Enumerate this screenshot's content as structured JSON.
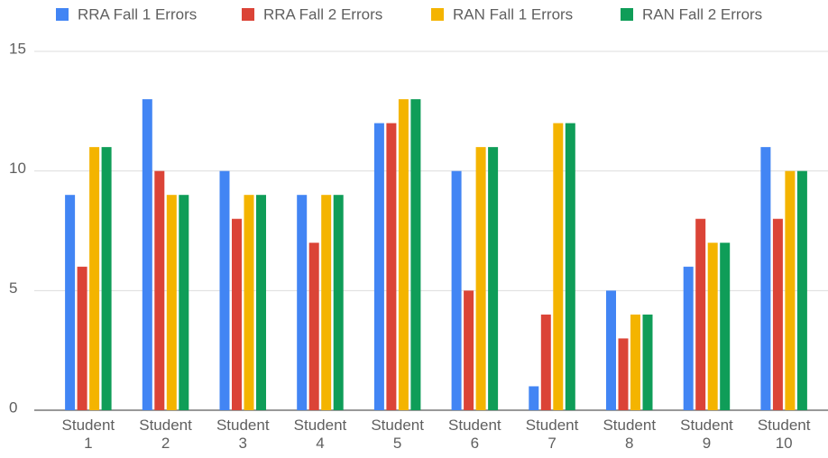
{
  "chart_data": {
    "type": "bar",
    "categories": [
      "Student 1",
      "Student 2",
      "Student 3",
      "Student 4",
      "Student 5",
      "Student 6",
      "Student 7",
      "Student 8",
      "Student 9",
      "Student 10"
    ],
    "series": [
      {
        "name": "RRA Fall 1 Errors",
        "color": "#4285f4",
        "values": [
          9,
          13,
          10,
          9,
          12,
          10,
          1,
          5,
          6,
          11
        ]
      },
      {
        "name": "RRA Fall 2 Errors",
        "color": "#db4437",
        "values": [
          6,
          10,
          8,
          7,
          12,
          5,
          4,
          3,
          8,
          8
        ]
      },
      {
        "name": "RAN Fall 1 Errors",
        "color": "#f4b400",
        "values": [
          11,
          9,
          9,
          9,
          13,
          11,
          12,
          4,
          7,
          10
        ]
      },
      {
        "name": "RAN Fall 2 Errors",
        "color": "#0f9d58",
        "values": [
          11,
          9,
          9,
          9,
          13,
          11,
          12,
          4,
          7,
          10
        ]
      }
    ],
    "ylim": [
      0,
      15
    ],
    "yticks": [
      0,
      5,
      10,
      15
    ],
    "grid": true,
    "legend": "top"
  }
}
